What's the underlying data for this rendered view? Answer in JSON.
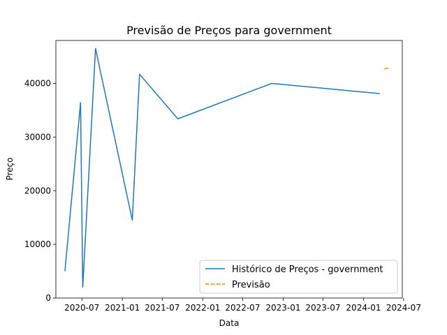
{
  "chart_data": {
    "type": "line",
    "title": "Previsão de Preços para government",
    "xlabel": "Data",
    "ylabel": "Preço",
    "x_axis": {
      "type": "date",
      "range": [
        "2020-03-05",
        "2024-06-25"
      ],
      "ticks": [
        {
          "date": "2020-07-01",
          "label": "2020-07"
        },
        {
          "date": "2021-01-01",
          "label": "2021-01"
        },
        {
          "date": "2021-07-01",
          "label": "2021-07"
        },
        {
          "date": "2022-01-01",
          "label": "2022-01"
        },
        {
          "date": "2022-07-01",
          "label": "2022-07"
        },
        {
          "date": "2023-01-01",
          "label": "2023-01"
        },
        {
          "date": "2023-07-01",
          "label": "2023-07"
        },
        {
          "date": "2024-01-01",
          "label": "2024-01"
        },
        {
          "date": "2024-07-01",
          "label": "2024-07"
        }
      ]
    },
    "y_axis": {
      "range": [
        0,
        48000
      ],
      "ticks": [
        0,
        10000,
        20000,
        30000,
        40000
      ]
    },
    "grid": false,
    "legend_position": "lower-right",
    "series": [
      {
        "name": "Histórico de Preços - government",
        "color": "#1f77b4",
        "style": "solid",
        "points": [
          {
            "x": "2020-04-15",
            "y": 5000
          },
          {
            "x": "2020-06-25",
            "y": 36400
          },
          {
            "x": "2020-07-05",
            "y": 2000
          },
          {
            "x": "2020-09-01",
            "y": 46500
          },
          {
            "x": "2021-02-15",
            "y": 14500
          },
          {
            "x": "2021-03-20",
            "y": 41700
          },
          {
            "x": "2021-09-10",
            "y": 33400
          },
          {
            "x": "2022-11-10",
            "y": 40000
          },
          {
            "x": "2024-03-15",
            "y": 38100
          }
        ]
      },
      {
        "name": "Previsão",
        "color": "#ff7f0e",
        "style": "dashed",
        "points": [
          {
            "x": "2024-04-05",
            "y": 42700
          },
          {
            "x": "2024-04-25",
            "y": 42900
          }
        ]
      }
    ]
  }
}
